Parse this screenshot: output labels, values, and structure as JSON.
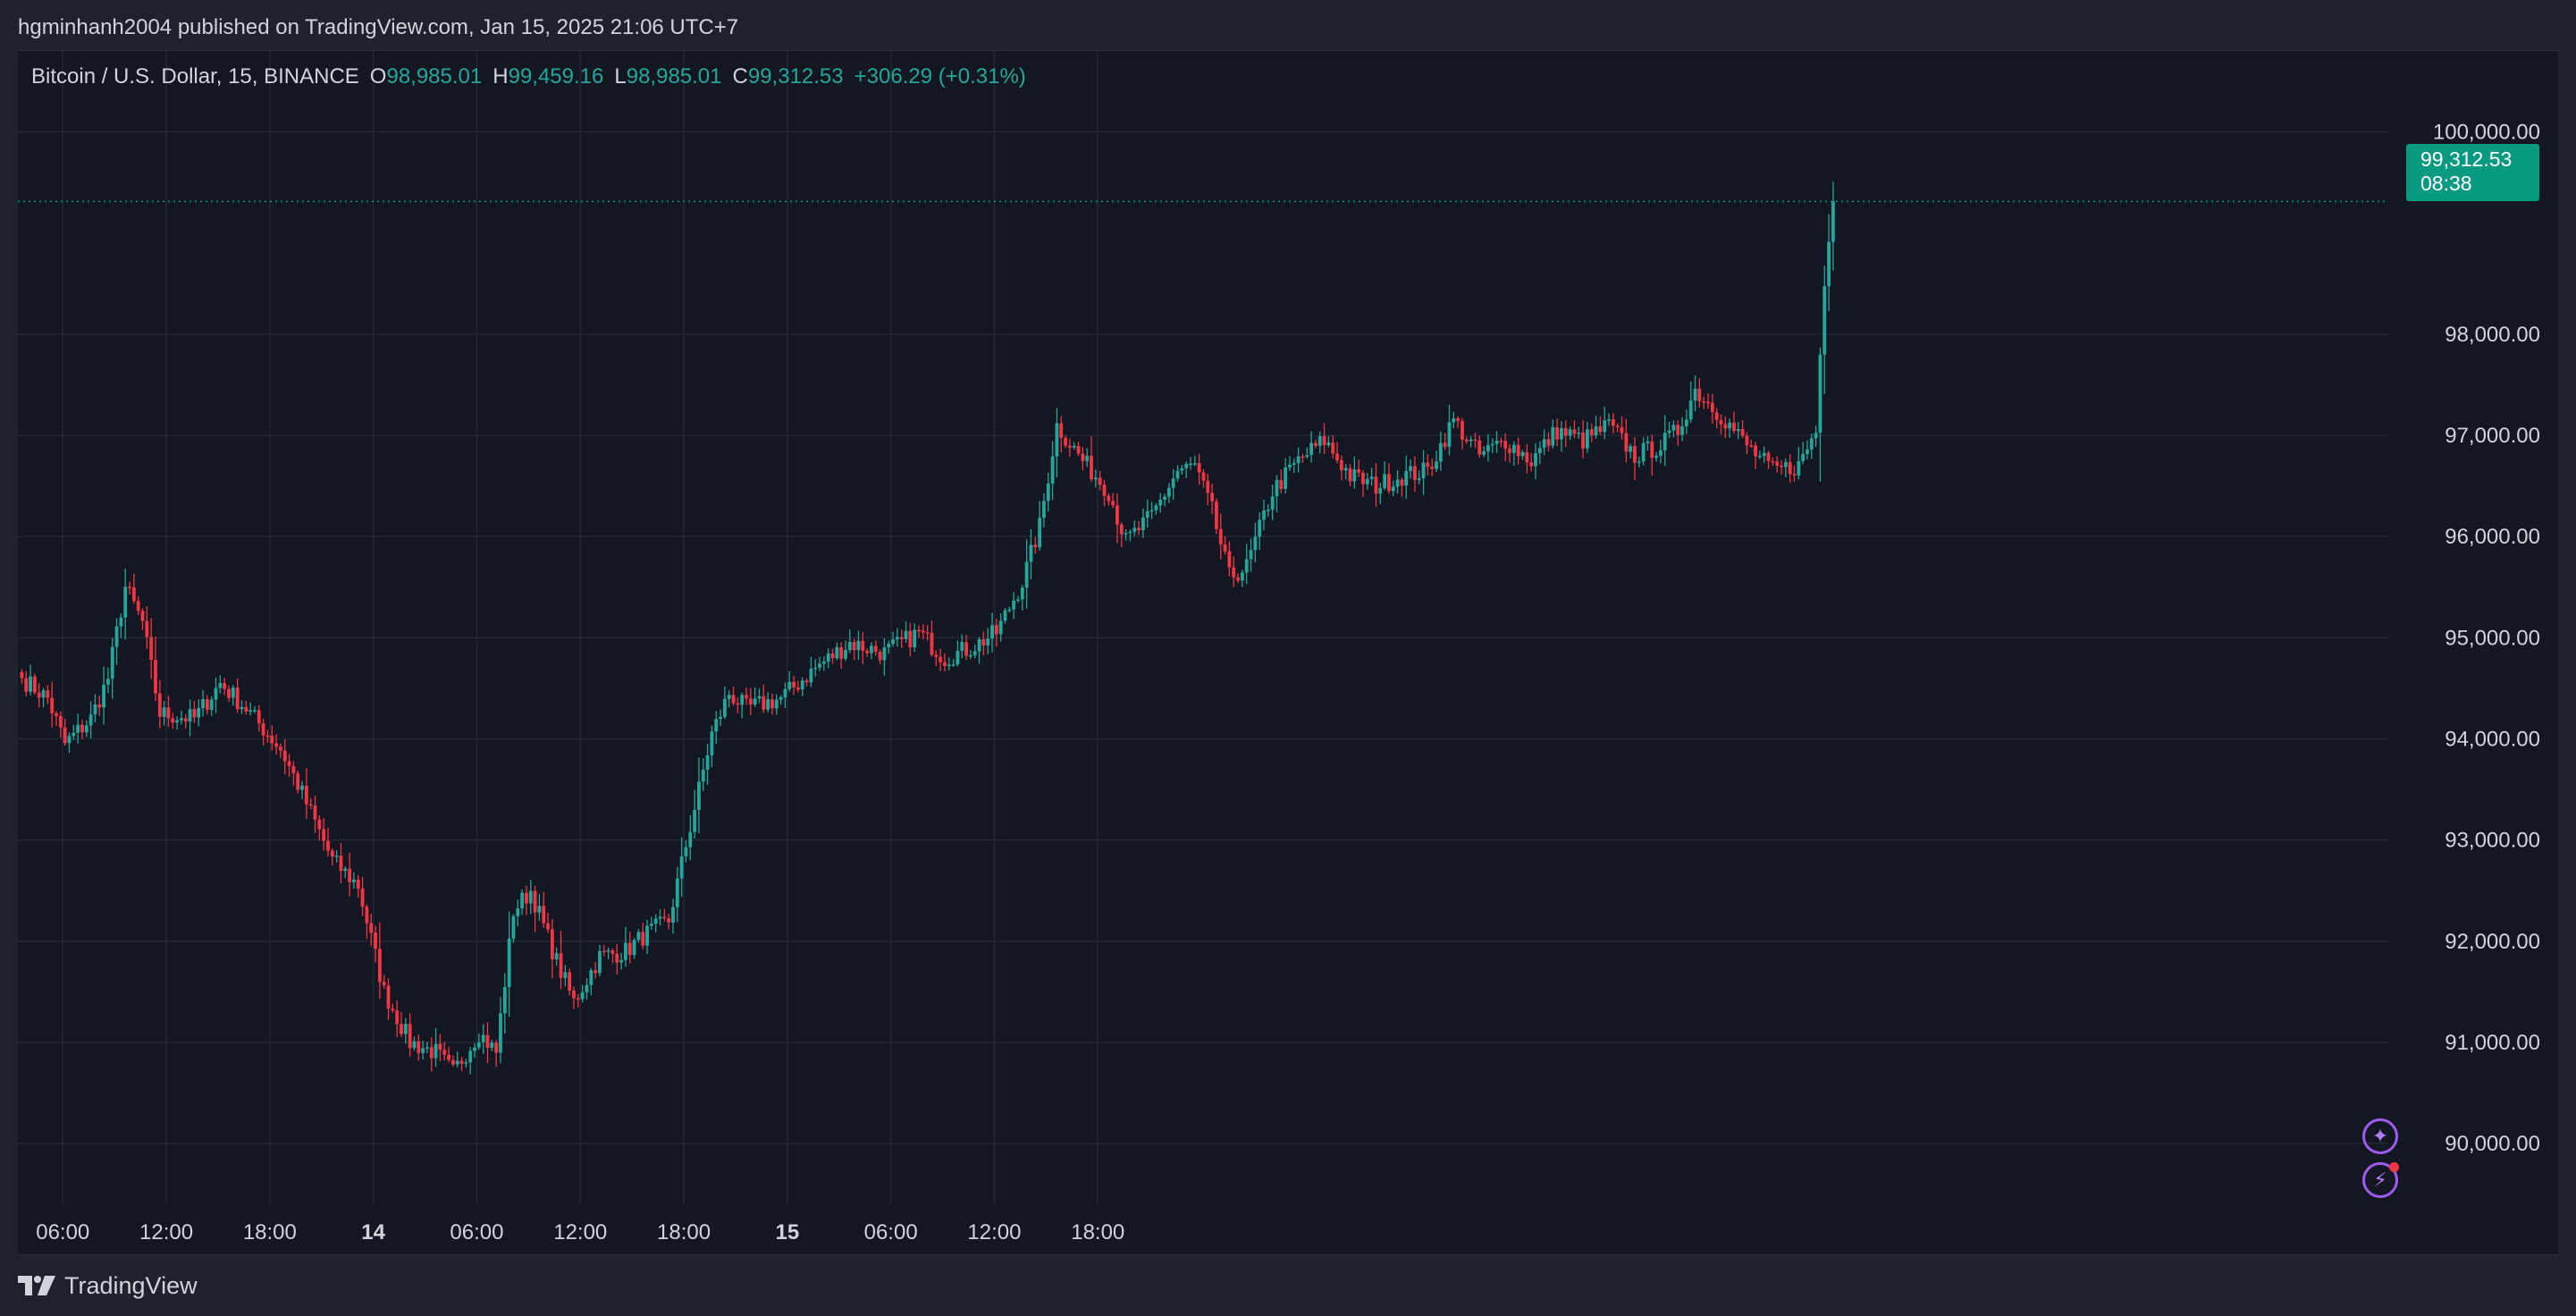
{
  "header": {
    "published": "hgminhanh2004 published on TradingView.com, Jan 15, 2025 21:06 UTC+7"
  },
  "legend": {
    "symbol": "Bitcoin / U.S. Dollar, 15, BINANCE",
    "o_label": "O",
    "o_value": "98,985.01",
    "h_label": "H",
    "h_value": "99,459.16",
    "l_label": "L",
    "l_value": "98,985.01",
    "c_label": "C",
    "c_value": "99,312.53",
    "change": "+306.29 (+0.31%)"
  },
  "price_tag": {
    "price": "99,312.53",
    "countdown": "08:38"
  },
  "footer": {
    "brand": "TradingView"
  },
  "icons": {
    "assistant": "sparkle-icon",
    "alerts": "lightning-icon",
    "logo": "tradingview-logo-icon"
  },
  "colors": {
    "up": "#26a69a",
    "down": "#f23645",
    "background": "#131722",
    "grid": "#232734",
    "text": "#d1d4dc",
    "price_tag": "#089981",
    "accent": "#9c5cf0"
  },
  "chart_data": {
    "type": "candlestick",
    "title": "Bitcoin / U.S. Dollar, 15, BINANCE",
    "interval": "15",
    "x_ticks": [
      "06:00",
      "12:00",
      "18:00",
      "14",
      "06:00",
      "12:00",
      "18:00",
      "15",
      "06:00",
      "12:00",
      "18:00"
    ],
    "y_ticks": [
      "90,000.00",
      "91,000.00",
      "92,000.00",
      "93,000.00",
      "94,000.00",
      "95,000.00",
      "96,000.00",
      "97,000.00",
      "98,000.00",
      "100,000.00"
    ],
    "ylim": [
      89400,
      100800
    ],
    "last_price": 99312.53,
    "close_path": [
      [
        0,
        94600
      ],
      [
        6,
        94400
      ],
      [
        10,
        93950
      ],
      [
        16,
        94200
      ],
      [
        20,
        94600
      ],
      [
        24,
        95500
      ],
      [
        28,
        95150
      ],
      [
        32,
        94250
      ],
      [
        40,
        94200
      ],
      [
        46,
        94550
      ],
      [
        52,
        94300
      ],
      [
        60,
        93900
      ],
      [
        64,
        93550
      ],
      [
        72,
        92800
      ],
      [
        78,
        92550
      ],
      [
        84,
        91500
      ],
      [
        90,
        91000
      ],
      [
        96,
        90900
      ],
      [
        100,
        90700
      ],
      [
        106,
        91100
      ],
      [
        110,
        90900
      ],
      [
        114,
        92300
      ],
      [
        118,
        92500
      ],
      [
        124,
        91800
      ],
      [
        128,
        91400
      ],
      [
        134,
        91850
      ],
      [
        140,
        91900
      ],
      [
        144,
        92050
      ],
      [
        150,
        92200
      ],
      [
        154,
        92950
      ],
      [
        160,
        94050
      ],
      [
        164,
        94450
      ],
      [
        168,
        94300
      ],
      [
        176,
        94400
      ],
      [
        184,
        94700
      ],
      [
        192,
        94950
      ],
      [
        200,
        94850
      ],
      [
        208,
        95050
      ],
      [
        214,
        94800
      ],
      [
        220,
        94900
      ],
      [
        226,
        95050
      ],
      [
        232,
        95550
      ],
      [
        236,
        96100
      ],
      [
        240,
        97100
      ],
      [
        246,
        96750
      ],
      [
        252,
        96450
      ],
      [
        256,
        95950
      ],
      [
        262,
        96200
      ],
      [
        268,
        96650
      ],
      [
        272,
        96700
      ],
      [
        276,
        96250
      ],
      [
        280,
        95600
      ],
      [
        284,
        95700
      ],
      [
        290,
        96450
      ],
      [
        296,
        96750
      ],
      [
        302,
        96950
      ],
      [
        308,
        96600
      ],
      [
        314,
        96500
      ],
      [
        320,
        96600
      ],
      [
        326,
        96650
      ],
      [
        332,
        97150
      ],
      [
        338,
        96800
      ],
      [
        344,
        96950
      ],
      [
        350,
        96750
      ],
      [
        356,
        97050
      ],
      [
        362,
        96950
      ],
      [
        368,
        97100
      ],
      [
        374,
        96800
      ],
      [
        380,
        96900
      ],
      [
        384,
        97050
      ],
      [
        388,
        97450
      ],
      [
        394,
        97200
      ],
      [
        400,
        96900
      ],
      [
        406,
        96650
      ],
      [
        412,
        96700
      ],
      [
        416,
        97050
      ],
      [
        418,
        98550
      ],
      [
        419,
        99000
      ],
      [
        420,
        99312.53
      ]
    ]
  }
}
